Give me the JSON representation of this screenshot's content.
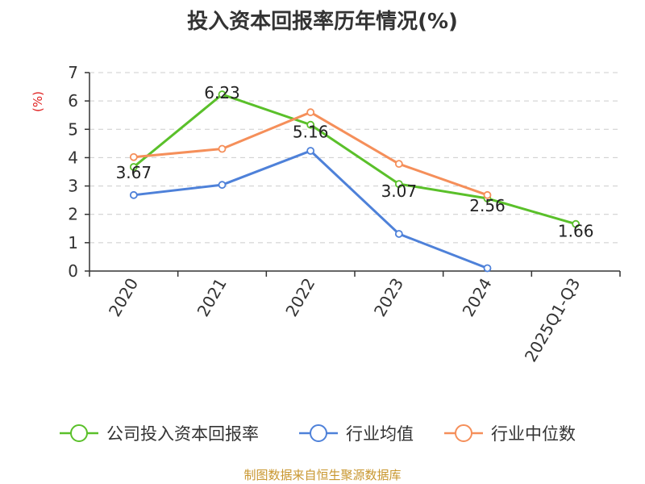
{
  "chart_data": {
    "type": "line",
    "title": "投入资本回报率历年情况(%)",
    "ylabel": "(%)",
    "xlabel": "",
    "ylim": [
      0,
      7
    ],
    "yticks": [
      0,
      1,
      2,
      3,
      4,
      5,
      6,
      7
    ],
    "categories": [
      "2020",
      "2021",
      "2022",
      "2023",
      "2024",
      "2025Q1-Q3"
    ],
    "grid": true,
    "legend_position": "bottom",
    "series": [
      {
        "name": "公司投入资本回报率",
        "color": "#5ac02a",
        "values": [
          3.67,
          6.23,
          5.16,
          3.07,
          2.56,
          1.66
        ],
        "labels": [
          "3.67",
          "6.23",
          "5.16",
          "3.07",
          "2.56",
          "1.66"
        ]
      },
      {
        "name": "行业均值",
        "color": "#4e81d9",
        "values": [
          2.68,
          3.04,
          4.24,
          1.31,
          0.1,
          null
        ]
      },
      {
        "name": "行业中位数",
        "color": "#f58f5a",
        "values": [
          4.02,
          4.31,
          5.6,
          3.78,
          2.68,
          null
        ]
      }
    ]
  },
  "source": "制图数据来自恒生聚源数据库"
}
